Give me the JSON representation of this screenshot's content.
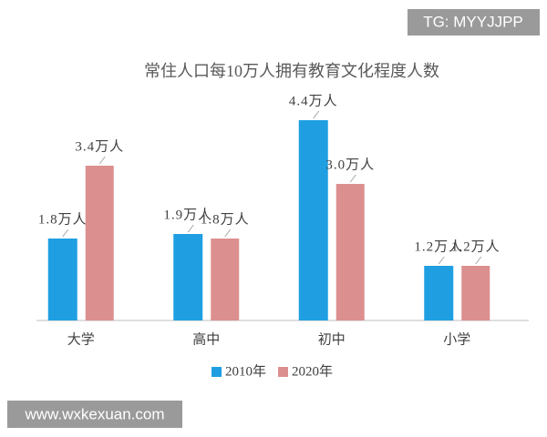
{
  "chart_data": {
    "type": "bar",
    "title": "常住人口每10万人拥有教育文化程度人数",
    "categories": [
      "大学",
      "高中",
      "初中",
      "小学"
    ],
    "series": [
      {
        "name": "2010年",
        "color": "#1f9fe2",
        "values": [
          1.8,
          1.9,
          4.4,
          1.2
        ],
        "value_labels": [
          "1.8万人",
          "1.9万人",
          "4.4万人",
          "1.2万人"
        ]
      },
      {
        "name": "2020年",
        "color": "#dc8f8f",
        "values": [
          3.4,
          1.8,
          3.0,
          1.2
        ],
        "value_labels": [
          "3.4万人",
          "1.8万人",
          "3.0万人",
          "1.2万人"
        ]
      }
    ],
    "legend": "bottom"
  },
  "watermarks": {
    "top": "TG: MYYJJPP",
    "bottom": "www.wxkexuan.com"
  }
}
